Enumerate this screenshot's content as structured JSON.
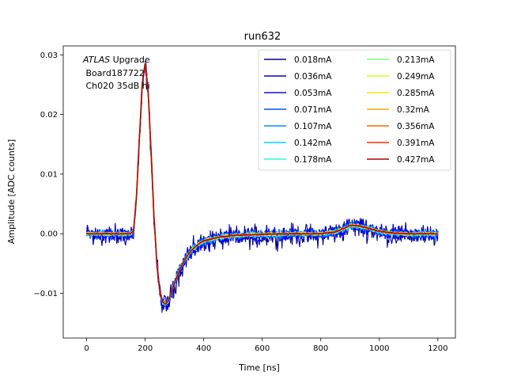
{
  "chart_data": {
    "type": "line",
    "title": "run632",
    "xlabel": "Time [ns]",
    "ylabel": "Amplitude [ADC counts]",
    "xlim": [
      -80,
      1260
    ],
    "ylim": [
      -0.0175,
      0.0315
    ],
    "xticks": [
      0,
      200,
      400,
      600,
      800,
      1000,
      1200
    ],
    "xtick_labels": [
      "0",
      "200",
      "400",
      "600",
      "800",
      "1000",
      "1200"
    ],
    "yticks": [
      -0.01,
      0.0,
      0.01,
      0.02,
      0.03
    ],
    "ytick_labels": [
      "−0.01",
      "0.00",
      "0.01",
      "0.02",
      "0.03"
    ],
    "grid": false,
    "legend_placement": "top-right",
    "legend_columns": 2,
    "annotation": {
      "experiment_italic": "ATLAS",
      "experiment_suffix": " Upgrade",
      "line2": " Board187722",
      "line3": " Ch020 35dB hi"
    },
    "x": [
      0,
      50,
      100,
      150,
      160,
      170,
      180,
      190,
      200,
      210,
      220,
      230,
      240,
      250,
      260,
      270,
      280,
      290,
      300,
      320,
      340,
      360,
      380,
      400,
      450,
      500,
      550,
      600,
      700,
      800,
      850,
      880,
      900,
      920,
      950,
      1000,
      1050,
      1100,
      1150,
      1200
    ],
    "pulse_shape": [
      0.0,
      0.0,
      0.0,
      0.0,
      0.0005,
      0.006,
      0.016,
      0.025,
      0.0285,
      0.024,
      0.014,
      0.003,
      -0.005,
      -0.0095,
      -0.0115,
      -0.0118,
      -0.0112,
      -0.0098,
      -0.0083,
      -0.0058,
      -0.0039,
      -0.0027,
      -0.0018,
      -0.0012,
      -0.0006,
      -0.0003,
      -0.0002,
      -0.0001,
      0.0,
      0.0,
      0.0003,
      0.0009,
      0.0014,
      0.0014,
      0.0011,
      0.0004,
      0.0001,
      0.0,
      0.0,
      0.0
    ],
    "series": [
      {
        "name": "0.018mA",
        "color": "#00008f",
        "noise": 0.0016,
        "offset": -0.0003
      },
      {
        "name": "0.036mA",
        "color": "#0000d4",
        "noise": 0.0011,
        "offset": -0.00015
      },
      {
        "name": "0.053mA",
        "color": "#0010ff",
        "noise": 0.0008,
        "offset": -0.0001
      },
      {
        "name": "0.071mA",
        "color": "#0050ff",
        "noise": 0.0006,
        "offset": -8e-05
      },
      {
        "name": "0.107mA",
        "color": "#0090ff",
        "noise": 0.0005,
        "offset": -5e-05
      },
      {
        "name": "0.142mA",
        "color": "#00d4ff",
        "noise": 0.0004,
        "offset": -3e-05
      },
      {
        "name": "0.178mA",
        "color": "#29ffce",
        "noise": 0.0003,
        "offset": -2e-05
      },
      {
        "name": "0.213mA",
        "color": "#7dff7a",
        "noise": 0.00025,
        "offset": 0.0
      },
      {
        "name": "0.249mA",
        "color": "#ceff29",
        "noise": 0.0002,
        "offset": 0.0
      },
      {
        "name": "0.285mA",
        "color": "#ffe500",
        "noise": 0.00018,
        "offset": 0.0
      },
      {
        "name": "0.32mA",
        "color": "#ffa700",
        "noise": 0.00015,
        "offset": 0.0
      },
      {
        "name": "0.356mA",
        "color": "#ff6800",
        "noise": 0.00012,
        "offset": 0.0
      },
      {
        "name": "0.391mA",
        "color": "#ff2900",
        "noise": 0.0001,
        "offset": 0.0
      },
      {
        "name": "0.427mA",
        "color": "#b20000",
        "noise": 8e-05,
        "offset": 0.0
      }
    ]
  }
}
